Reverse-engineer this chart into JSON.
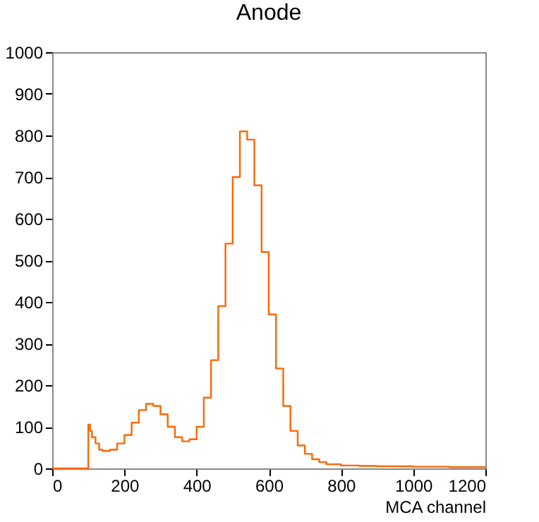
{
  "chart_data": {
    "type": "step",
    "title": "Anode",
    "xlabel": "MCA channel",
    "x": [
      0,
      50,
      100,
      105,
      110,
      120,
      130,
      140,
      160,
      180,
      200,
      220,
      240,
      260,
      280,
      300,
      320,
      340,
      360,
      380,
      400,
      420,
      440,
      460,
      480,
      500,
      520,
      540,
      560,
      580,
      600,
      620,
      640,
      660,
      680,
      700,
      720,
      740,
      760,
      800,
      850,
      900,
      1000,
      1100,
      1200
    ],
    "series": [
      {
        "color": "#ff6600",
        "values": [
          0,
          0,
          105,
          90,
          75,
          60,
          45,
          42,
          45,
          60,
          80,
          110,
          140,
          155,
          150,
          130,
          100,
          75,
          65,
          70,
          100,
          170,
          260,
          390,
          540,
          700,
          810,
          790,
          680,
          520,
          370,
          240,
          150,
          90,
          55,
          35,
          22,
          15,
          10,
          7,
          6,
          5,
          4,
          3,
          2
        ]
      }
    ],
    "xlim": [
      0,
      1200
    ],
    "xticks": [
      0,
      200,
      400,
      600,
      800,
      1000,
      1200
    ],
    "ylim": [
      0,
      1000
    ],
    "yticks": [
      0,
      100,
      200,
      300,
      400,
      500,
      600,
      700,
      800,
      900,
      1000
    ],
    "grid": false
  }
}
